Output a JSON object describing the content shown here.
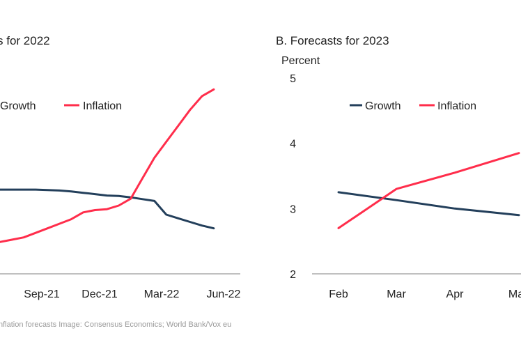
{
  "source_note": "nflation forecasts Image: Consensus Economics; World Bank/Vox eu",
  "colors": {
    "growth": "#233f5b",
    "inflation": "#ff2d4b",
    "axis": "#9a9a9a"
  },
  "chart_data": [
    {
      "type": "line",
      "title": "s for 2022",
      "unit_label": "",
      "x_tick_labels": [
        "Sep-21",
        "Dec-21",
        "Mar-22",
        "Jun-22"
      ],
      "x": [
        0,
        1,
        2,
        3,
        4,
        5,
        6,
        7,
        8,
        9,
        10,
        11,
        12,
        13,
        14,
        15,
        16,
        17,
        18,
        19
      ],
      "series": [
        {
          "name": "Growth",
          "values": [
            3.85,
            3.85,
            3.85,
            3.85,
            3.84,
            3.83,
            3.81,
            3.78,
            3.75,
            3.72,
            3.71,
            3.68,
            3.64,
            3.6,
            3.3,
            3.22,
            3.14,
            3.06,
            3.0,
            null
          ]
        },
        {
          "name": "Inflation",
          "values": [
            2.7,
            2.75,
            2.8,
            2.9,
            3.0,
            3.1,
            3.2,
            3.35,
            3.4,
            3.42,
            3.5,
            3.65,
            4.1,
            4.55,
            4.9,
            5.25,
            5.6,
            5.9,
            6.05,
            null
          ]
        }
      ],
      "legend": {
        "position": "top-left"
      },
      "grid": false
    },
    {
      "type": "line",
      "title": "B. Forecasts for 2023",
      "unit_label": "Percent",
      "ylim": [
        2,
        5
      ],
      "y_tick_labels": [
        "2",
        "3",
        "4",
        "5"
      ],
      "categories": [
        "Feb",
        "Mar",
        "Apr",
        "May"
      ],
      "series": [
        {
          "name": "Growth",
          "values": [
            3.25,
            3.13,
            3.0,
            2.9
          ]
        },
        {
          "name": "Inflation",
          "values": [
            2.7,
            3.3,
            3.55,
            3.85
          ]
        }
      ],
      "legend": {
        "position": "top-center"
      },
      "grid": false
    }
  ]
}
